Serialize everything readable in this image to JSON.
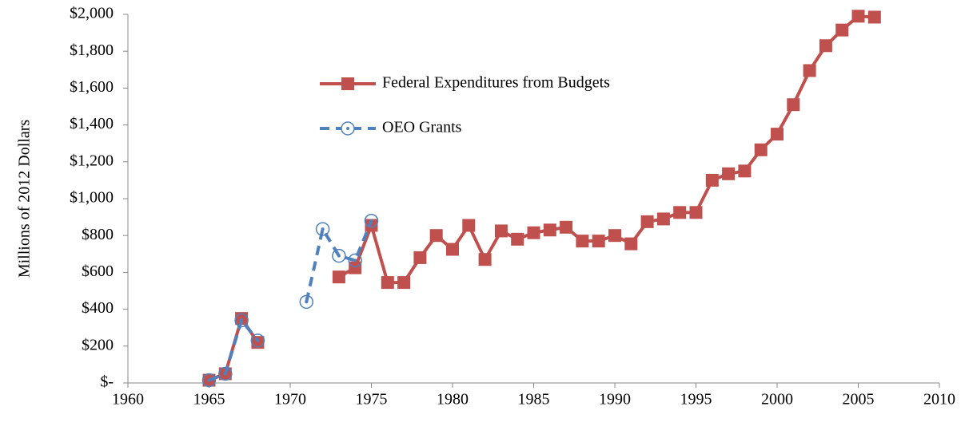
{
  "chart_data": {
    "type": "line",
    "y_label": "Millions of 2012 Dollars",
    "x": [
      1965,
      1966,
      1967,
      1968,
      1969,
      1970,
      1971,
      1972,
      1973,
      1974,
      1975,
      1976,
      1977,
      1978,
      1979,
      1980,
      1981,
      1982,
      1983,
      1984,
      1985,
      1986,
      1987,
      1988,
      1989,
      1990,
      1991,
      1992,
      1993,
      1994,
      1995,
      1996,
      1997,
      1998,
      1999,
      2000,
      2001,
      2002,
      2003,
      2004,
      2005,
      2006
    ],
    "series": [
      {
        "name": "Federal Expenditures from Budgets",
        "color": "#c0504d",
        "marker": "square",
        "dashed": false,
        "values": [
          15,
          50,
          350,
          220,
          null,
          null,
          null,
          null,
          575,
          625,
          855,
          545,
          545,
          680,
          800,
          725,
          855,
          670,
          825,
          780,
          815,
          830,
          845,
          770,
          770,
          800,
          755,
          875,
          890,
          925,
          925,
          1100,
          1135,
          1150,
          1265,
          1350,
          1510,
          1695,
          1830,
          1915,
          1990,
          1985
        ]
      },
      {
        "name": "OEO Grants",
        "color": "#4f81bd",
        "marker": "circle",
        "dashed": true,
        "values": [
          15,
          50,
          340,
          230,
          null,
          null,
          440,
          835,
          690,
          665,
          880,
          null,
          null,
          null,
          null,
          null,
          null,
          null,
          null,
          null,
          null,
          null,
          null,
          null,
          null,
          null,
          null,
          null,
          null,
          null,
          null,
          null,
          null,
          null,
          null,
          null,
          null,
          null,
          null,
          null,
          null,
          null
        ]
      }
    ],
    "xlim": [
      1960,
      2010
    ],
    "xticks": [
      1960,
      1965,
      1970,
      1975,
      1980,
      1985,
      1990,
      1995,
      2000,
      2005,
      2010
    ],
    "ylim": [
      0,
      2000
    ],
    "yticks": [
      {
        "value": 0,
        "label": "$-"
      },
      {
        "value": 200,
        "label": "$200"
      },
      {
        "value": 400,
        "label": "$400"
      },
      {
        "value": 600,
        "label": "$600"
      },
      {
        "value": 800,
        "label": "$800"
      },
      {
        "value": 1000,
        "label": "$1,000"
      },
      {
        "value": 1200,
        "label": "$1,200"
      },
      {
        "value": 1400,
        "label": "$1,400"
      },
      {
        "value": 1600,
        "label": "$1,600"
      },
      {
        "value": 1800,
        "label": "$1,800"
      },
      {
        "value": 2000,
        "label": "$2,000"
      }
    ],
    "grid": false,
    "legend": "upper center"
  }
}
